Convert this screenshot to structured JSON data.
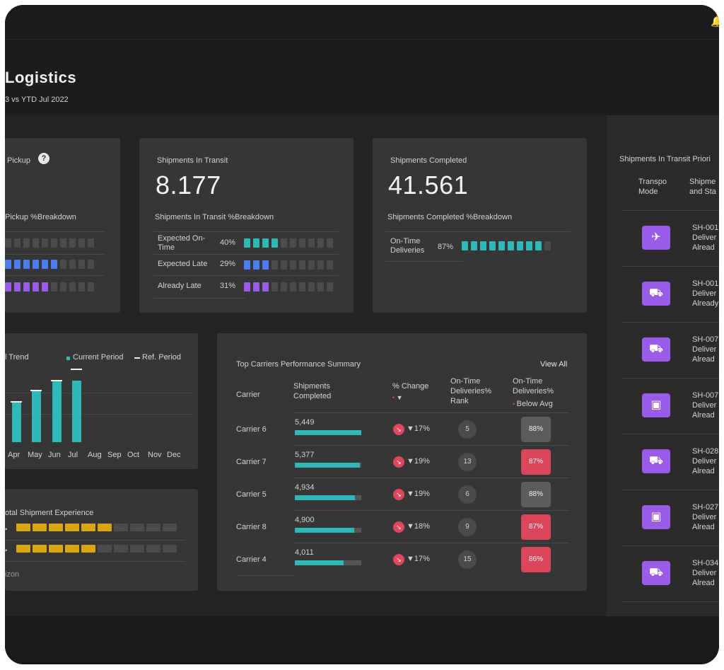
{
  "header": {
    "title": "Logistics",
    "subtitle": "3 vs YTD Jul 2022",
    "bell_icon": "bell-icon"
  },
  "pickup_card": {
    "title": "Pickup",
    "breakdown_label": "Pickup %Breakdown",
    "rows": [
      {
        "color": "#2fb8b8",
        "filled": 0
      },
      {
        "color": "#4d7cf2",
        "filled": 6
      },
      {
        "color": "#9a5be8",
        "filled": 5
      }
    ]
  },
  "transit_card": {
    "title": "Shipments In Transit",
    "value": "8.177",
    "breakdown_label": "Shipments In Transit %Breakdown",
    "rows": [
      {
        "label": "Expected On-Time",
        "pct": "40%",
        "filled": 4
      },
      {
        "label": "Expected Late",
        "pct": "29%",
        "filled": 3
      },
      {
        "label": "Already Late",
        "pct": "31%",
        "filled": 3
      }
    ]
  },
  "completed_card": {
    "title": "Shipments Completed",
    "value": "41.561",
    "breakdown_label": "Shipments Completed %Breakdown",
    "rows": [
      {
        "label": "On-Time Deliveries",
        "pct": "87%",
        "filled": 9
      }
    ]
  },
  "trend_card": {
    "title": "l Trend",
    "legend_current": "Current Period",
    "legend_ref": "Ref. Period",
    "months": [
      "Apr",
      "May",
      "Jun",
      "Jul",
      "Aug",
      "Sep",
      "Oct",
      "Nov",
      "Dec"
    ],
    "current": [
      58,
      73,
      87,
      87,
      null,
      null,
      null,
      null,
      null
    ],
    "ref": [
      58,
      74,
      88,
      104,
      null,
      null,
      null,
      null,
      null
    ]
  },
  "experience_card": {
    "title": "otal Shipment Experience",
    "rows": [
      {
        "filled": 6
      },
      {
        "filled": 5
      }
    ],
    "footer_label": "izon"
  },
  "carriers": {
    "title": "Top Carriers Performance Summary",
    "view_all": "View All",
    "headers": {
      "carrier": "Carrier",
      "shipments": "Shipments Completed",
      "change": "% Change",
      "rank": "On-Time Deliveries% Rank",
      "ontime": "On-Time Deliveries%",
      "below_avg": "Below Avg"
    },
    "rows": [
      {
        "carrier": "Carrier 6",
        "shipments": "5,449",
        "fill": 1.0,
        "change": "▼17%",
        "rank": "5",
        "ontime": "88%",
        "below": false
      },
      {
        "carrier": "Carrier 7",
        "shipments": "5,377",
        "fill": 0.98,
        "change": "▼19%",
        "rank": "13",
        "ontime": "87%",
        "below": true
      },
      {
        "carrier": "Carrier 5",
        "shipments": "4,934",
        "fill": 0.9,
        "change": "▼19%",
        "rank": "6",
        "ontime": "88%",
        "below": false
      },
      {
        "carrier": "Carrier 8",
        "shipments": "4,900",
        "fill": 0.89,
        "change": "▼18%",
        "rank": "9",
        "ontime": "87%",
        "below": true
      },
      {
        "carrier": "Carrier 4",
        "shipments": "4,011",
        "fill": 0.73,
        "change": "▼17%",
        "rank": "15",
        "ontime": "86%",
        "below": true
      }
    ]
  },
  "priority_panel": {
    "title": "Shipments In Transit Priori",
    "col_mode": "Transpo Mode",
    "col_shipment": "Shipme and Sta",
    "rows": [
      {
        "icon": "plane-icon",
        "glyph": "✈",
        "id": "SH-001",
        "line2": "Deliver",
        "line3": "Alread"
      },
      {
        "icon": "truck-icon",
        "glyph": "⛟",
        "id": "SH-001",
        "line2": "Deliver",
        "line3": "Already"
      },
      {
        "icon": "truck-icon",
        "glyph": "⛟",
        "id": "SH-007",
        "line2": "Deliver",
        "line3": "Alread"
      },
      {
        "icon": "train-icon",
        "glyph": "▣",
        "id": "SH-007",
        "line2": "Deliver",
        "line3": "Alread"
      },
      {
        "icon": "truck-icon",
        "glyph": "⛟",
        "id": "SH-028",
        "line2": "Deliver",
        "line3": "Alread"
      },
      {
        "icon": "train-icon",
        "glyph": "▣",
        "id": "SH-027",
        "line2": "Deliver",
        "line3": "Alread"
      },
      {
        "icon": "truck-icon",
        "glyph": "⛟",
        "id": "SH-034",
        "line2": "Deliver",
        "line3": "Alread"
      }
    ]
  },
  "colors": {
    "teal": "#2fb8b8",
    "blue": "#4d7cf2",
    "purple": "#9a5be8",
    "yellow": "#d9a612",
    "red": "#e0475e"
  }
}
